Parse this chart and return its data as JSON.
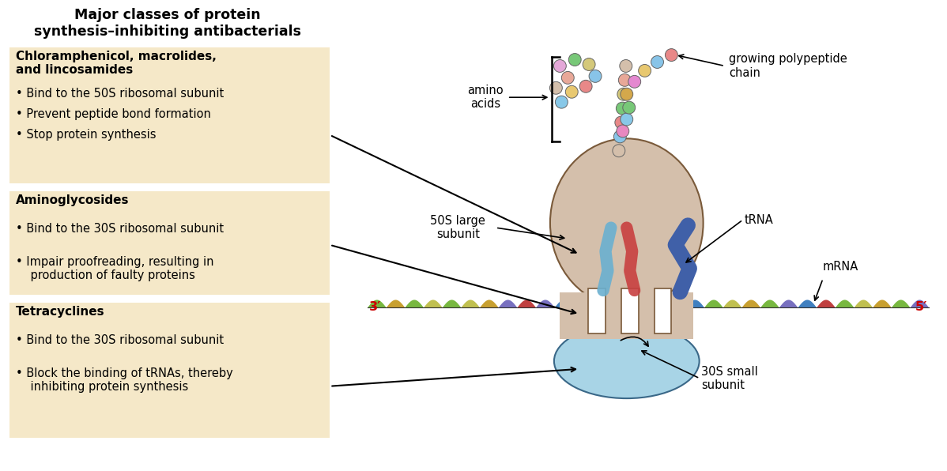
{
  "title": "Major classes of protein\nsynthesis–inhibiting antibacterials",
  "bg_color": "#ffffff",
  "box_bg": "#f5e8c8",
  "box1_title": "Chloramphenicol, macrolides,\nand lincosamides",
  "box1_bullets": [
    "• Bind to the 50S ribosomal subunit",
    "• Prevent peptide bond formation",
    "• Stop protein synthesis"
  ],
  "box2_title": "Aminoglycosides",
  "box2_bullets": [
    "• Bind to the 30S ribosomal subunit",
    "• Impair proofreading, resulting in\n    production of faulty proteins"
  ],
  "box3_title": "Tetracyclines",
  "box3_bullets": [
    "• Bind to the 30S ribosomal subunit",
    "• Block the binding of tRNAs, thereby\n    inhibiting protein synthesis"
  ],
  "label_amino_acids": "amino\nacids",
  "label_polypeptide": "growing polypeptide\nchain",
  "label_50S": "50S large\nsubunit",
  "label_30S": "30S small\nsubunit",
  "label_tRNA": "tRNA",
  "label_mRNA": "mRNA",
  "label_3prime": "3′",
  "label_5prime": "5′",
  "ribosome_50S_color": "#d4bfab",
  "ribosome_30S_color": "#a8d4e6",
  "mrna_line_color": "#4a7a30",
  "trna_blue_color": "#4060a8",
  "trna_cyan_color": "#6ab0d0",
  "trna_red_color": "#c84040",
  "arrow_color": "#000000",
  "text_color": "#000000",
  "red_text_color": "#cc0000",
  "chain_bead_colors": [
    "#d4bfab",
    "#88c4e8",
    "#e88888",
    "#78c878",
    "#d4c87a",
    "#e8a898",
    "#d4bfab",
    "#e888c0",
    "#88c8e8",
    "#78c878",
    "#d4a84b",
    "#e488d0",
    "#e8c870",
    "#88c4e8",
    "#e88888"
  ],
  "free_aa_colors": [
    "#e4a8d8",
    "#78c878",
    "#d4c87a",
    "#88c4e8",
    "#e8a898",
    "#d4bfab",
    "#e8c870",
    "#e88888",
    "#88c8e8"
  ],
  "mrna_seg_colors": [
    "#78b840",
    "#c8a030",
    "#78b840",
    "#c0c050",
    "#78b840",
    "#c0c050",
    "#c8a030",
    "#7870c0",
    "#c04040",
    "#7870c0",
    "#4080c0",
    "#78b840",
    "#c0c050",
    "#78b840",
    "#c8a030",
    "#7870c0",
    "#c04040",
    "#4080c0",
    "#78b840",
    "#c0c050",
    "#c8a030",
    "#78b840",
    "#7870c0",
    "#4080c0",
    "#c04040",
    "#78b840",
    "#c0c050",
    "#c8a030",
    "#78b840",
    "#7870c0"
  ]
}
